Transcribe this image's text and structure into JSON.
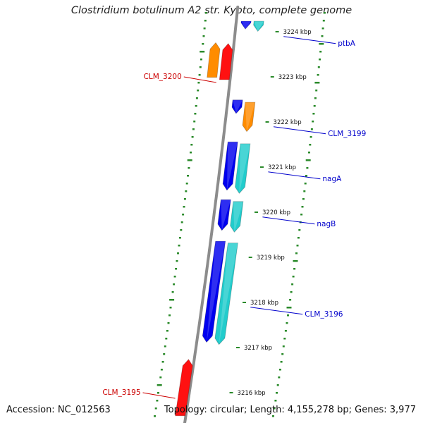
{
  "title": "Clostridium botulinum A2 str. Kyoto, complete genome",
  "footer": {
    "accession": "Accession: NC_012563",
    "summary": "Topology: circular; Length: 4,155,278 bp; Genes: 3,977"
  },
  "colors": {
    "backbone": "#8c8c8c",
    "gc_track": "#2a8a2a",
    "cds_forward": "#0000ee",
    "trna_like": "#22cccc",
    "cds_reverse": "#ff1111",
    "other": "#ff8c00",
    "label_forward": "#0000cc",
    "label_reverse": "#cc0000"
  },
  "ticks": [
    "3216 kbp",
    "3217 kbp",
    "3218 kbp",
    "3219 kbp",
    "3220 kbp",
    "3221 kbp",
    "3222 kbp",
    "3223 kbp",
    "3224 kbp"
  ],
  "features": [
    {
      "strand": "+",
      "type": "cds",
      "start": 3224.33,
      "end": 3224.12
    },
    {
      "strand": "+",
      "type": "rna",
      "start": 3224.3,
      "end": 3224.07
    },
    {
      "strand": "+",
      "type": "cds",
      "start": 3222.55,
      "end": 3222.25
    },
    {
      "strand": "+",
      "type": "other",
      "start": 3222.5,
      "end": 3221.85
    },
    {
      "strand": "+",
      "type": "cds",
      "start": 3221.62,
      "end": 3220.55
    },
    {
      "strand": "+",
      "type": "rna",
      "start": 3221.58,
      "end": 3220.48
    },
    {
      "strand": "+",
      "type": "cds",
      "start": 3220.34,
      "end": 3219.66
    },
    {
      "strand": "+",
      "type": "rna",
      "start": 3220.3,
      "end": 3219.62
    },
    {
      "strand": "+",
      "type": "cds",
      "start": 3219.42,
      "end": 3217.18
    },
    {
      "strand": "+",
      "type": "rna",
      "start": 3219.38,
      "end": 3217.13
    },
    {
      "strand": "-",
      "type": "other",
      "start": 3223.05,
      "end": 3223.82
    },
    {
      "strand": "-",
      "type": "cds",
      "start": 3223.0,
      "end": 3223.8
    },
    {
      "strand": "-",
      "type": "cds",
      "start": 3215.55,
      "end": 3216.8
    }
  ],
  "labels": [
    {
      "text": "ptbA",
      "side": "right",
      "pos": 3224.05
    },
    {
      "text": "CLM_3199",
      "side": "right",
      "pos": 3222.05
    },
    {
      "text": "nagA",
      "side": "right",
      "pos": 3221.05
    },
    {
      "text": "nagB",
      "side": "right",
      "pos": 3220.05
    },
    {
      "text": "CLM_3196",
      "side": "right",
      "pos": 3218.05
    },
    {
      "text": "CLM_3200",
      "side": "left",
      "pos": 3223.25
    },
    {
      "text": "CLM_3195",
      "side": "left",
      "pos": 3216.25
    }
  ]
}
